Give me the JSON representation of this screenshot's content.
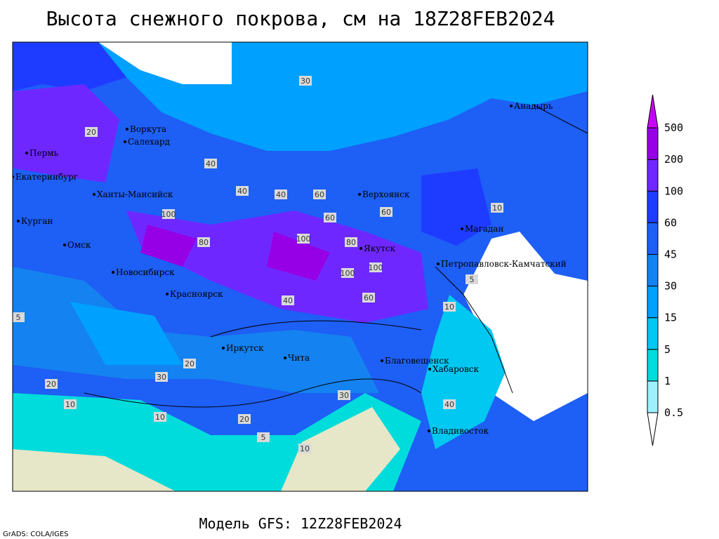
{
  "title": "Высота снежного покрова, см на 18Z28FEB2024",
  "footer": "Модель GFS: 12Z28FEB2024",
  "credit": "GrADS: COLA/IGES",
  "colorbar": {
    "levels": [
      0.5,
      1,
      5,
      15,
      30,
      45,
      60,
      100,
      200,
      500
    ],
    "colors": [
      "#ffffff",
      "#9ef0ff",
      "#00dcdc",
      "#00c8f0",
      "#00a0ff",
      "#1482f0",
      "#1e5ff5",
      "#1e3cff",
      "#6e28ff",
      "#9600e6",
      "#c800ff"
    ]
  },
  "cities": [
    "Воркута",
    "Салехард",
    "Пермь",
    "Екатеринбург",
    "Ханты-Мансийск",
    "Курган",
    "Омск",
    "Новосибирск",
    "Красноярск",
    "Верхоянск",
    "Якутск",
    "Анадырь",
    "Магадан",
    "Петропавловск-Камчатский",
    "Иркутск",
    "Чита",
    "Благовещенск",
    "Хабаровск",
    "Владивосток"
  ],
  "contour_labels": [
    30,
    20,
    40,
    100,
    80,
    40,
    40,
    60,
    60,
    60,
    100,
    80,
    100,
    100,
    60,
    40,
    30,
    20,
    20,
    10,
    5,
    10,
    20,
    5,
    10,
    30,
    40,
    10,
    5,
    10
  ]
}
